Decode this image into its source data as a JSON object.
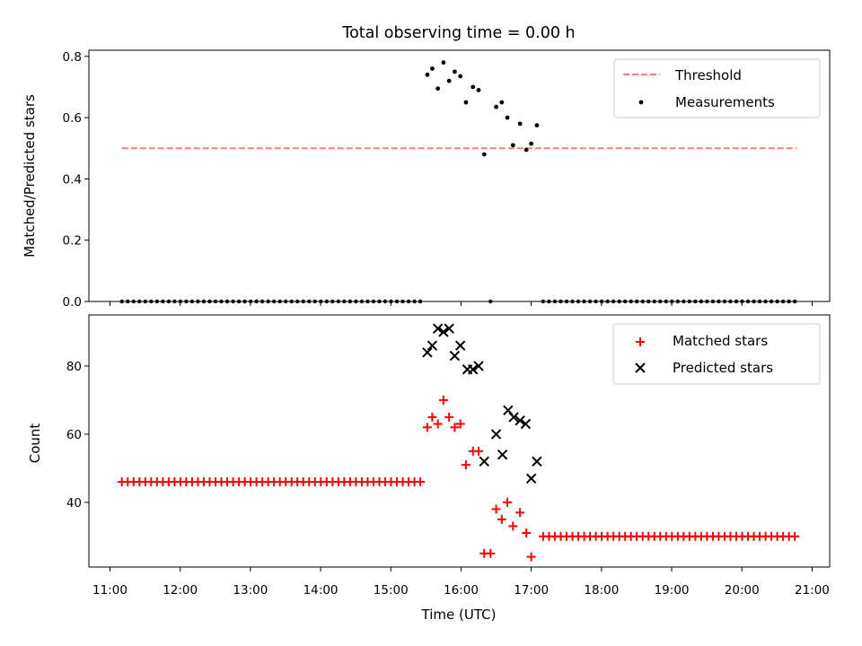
{
  "chart_data": [
    {
      "type": "scatter",
      "title": "Total observing time = 0.00 h",
      "ylabel": "Matched/Predicted stars",
      "xlabel": "",
      "ylim": [
        0,
        0.82
      ],
      "yticks": [
        "0.0",
        "0.2",
        "0.4",
        "0.6",
        "0.8"
      ],
      "legend_position": "top-right",
      "threshold": {
        "name": "Threshold",
        "value": 0.5,
        "x_start": 11.17,
        "x_end": 20.78,
        "color": "#ff7f7f",
        "style": "dashed"
      },
      "series": [
        {
          "name": "Measurements",
          "color": "#000000",
          "x": [
            15.52,
            15.59,
            15.67,
            15.75,
            15.83,
            15.91,
            15.99,
            16.07,
            16.17,
            16.25,
            16.33,
            16.5,
            16.58,
            16.66,
            16.74,
            16.84,
            16.93,
            17.0,
            17.08
          ],
          "y": [
            0.74,
            0.76,
            0.695,
            0.78,
            0.72,
            0.75,
            0.735,
            0.65,
            0.7,
            0.69,
            0.48,
            0.635,
            0.65,
            0.6,
            0.51,
            0.58,
            0.495,
            0.515,
            0.575
          ],
          "zero_runs": [
            {
              "start": 11.17,
              "end": 15.45,
              "step": 0.08333
            },
            {
              "start": 16.42,
              "end": 16.42,
              "step": 0.08333
            },
            {
              "start": 17.17,
              "end": 20.78,
              "step": 0.08333
            }
          ]
        }
      ]
    },
    {
      "type": "scatter",
      "title": "",
      "ylabel": "Count",
      "xlabel": "Time (UTC)",
      "ylim": [
        21,
        95
      ],
      "yticks": [
        "40",
        "60",
        "80"
      ],
      "xlim": [
        10.7,
        21.25
      ],
      "xticks": [
        "11:00",
        "12:00",
        "13:00",
        "14:00",
        "15:00",
        "16:00",
        "17:00",
        "18:00",
        "19:00",
        "20:00",
        "21:00"
      ],
      "legend_position": "top-right",
      "series": [
        {
          "name": "Matched stars",
          "color": "#ff0000",
          "marker": "+",
          "flat_runs": [
            {
              "start": 11.17,
              "end": 15.45,
              "step": 0.08333,
              "value": 46
            },
            {
              "start": 17.17,
              "end": 20.78,
              "step": 0.08333,
              "value": 30
            }
          ],
          "x": [
            15.52,
            15.59,
            15.67,
            15.75,
            15.83,
            15.91,
            15.99,
            16.07,
            16.17,
            16.25,
            16.33,
            16.42,
            16.5,
            16.58,
            16.66,
            16.74,
            16.84,
            16.93,
            17.0
          ],
          "y": [
            62,
            65,
            63,
            70,
            65,
            62,
            63,
            51,
            55,
            55,
            25,
            25,
            38,
            35,
            40,
            33,
            37,
            31,
            24
          ]
        },
        {
          "name": "Predicted stars",
          "color": "#000000",
          "marker": "x",
          "x": [
            15.52,
            15.59,
            15.67,
            15.75,
            15.83,
            15.91,
            15.99,
            16.09,
            16.17,
            16.25,
            16.33,
            16.5,
            16.59,
            16.67,
            16.75,
            16.84,
            16.92,
            17.0,
            17.08
          ],
          "y": [
            84,
            86,
            91,
            90,
            91,
            83,
            86,
            79,
            79,
            80,
            52,
            60,
            54,
            67,
            65,
            64,
            63,
            47,
            52
          ]
        }
      ]
    }
  ]
}
